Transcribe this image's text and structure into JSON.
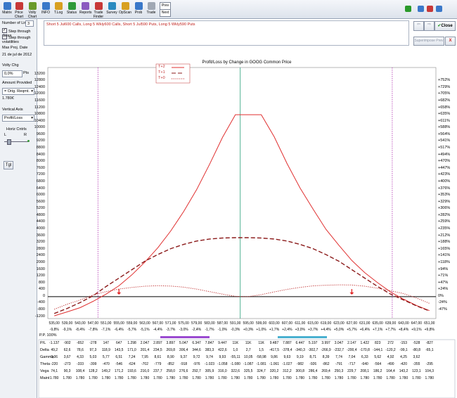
{
  "toolbar": {
    "buttons": [
      {
        "label": "Matrix",
        "icon": "matrix-icon",
        "color": "#3a78c9"
      },
      {
        "label": "Price Chart",
        "icon": "price-chart-icon",
        "color": "#c73838"
      },
      {
        "label": "Volty Chart",
        "icon": "volty-chart-icon",
        "color": "#6a9a2a"
      },
      {
        "label": "INFO",
        "icon": "info-icon",
        "color": "#3a78c9"
      },
      {
        "label": "T.Log",
        "icon": "tlog-icon",
        "color": "#d8a020"
      },
      {
        "label": "Status",
        "icon": "status-icon",
        "color": "#2e9a3a"
      },
      {
        "label": "Reports",
        "icon": "reports-icon",
        "color": "#8a5ac0"
      },
      {
        "label": "Trade Finder",
        "icon": "trade-finder-icon",
        "color": "#c73838"
      },
      {
        "label": "Survey",
        "icon": "survey-icon",
        "color": "#2a8ac0"
      },
      {
        "label": "OpScan",
        "icon": "opscan-icon",
        "color": "#d8a020"
      },
      {
        "label": "Prob",
        "icon": "prob-icon",
        "color": "#3a78c9"
      },
      {
        "label": "Trade",
        "icon": "trade-icon",
        "color": "#a0a8b4"
      }
    ],
    "prev_label": "Prev",
    "next_label": "Next"
  },
  "panel": {
    "lines_label": "Number of Lines",
    "lines_value": "3",
    "step_dates": "Step through dates",
    "step_vol": "Step through volatilities",
    "max_proj_label": "Max Proj. Date",
    "max_proj_value": "21 de jul de 2012",
    "volty_label": "Volty Chg",
    "volty_value": "0,0%",
    "volty_unit": "Pts",
    "amount_label": "Amount Provided",
    "amount_select": "= Orig. Reqmt.",
    "amount_value": "1.780€",
    "vaxis_label": "Vertical Axis",
    "vaxis_value": "Profit/Loss",
    "horiz_label": "Horiz Cntrls",
    "l_label": "L",
    "r_label": "R",
    "tgl_label": "Tgl"
  },
  "description": "Short 5 Jul600 Calls, Long 5 Wkly600 Calls, Short 5 Jul590 Puts, Long 5 Wkly590 Puts",
  "right_controls": {
    "close_label": "Close",
    "superimpose_label": "Superimpose Prev",
    "close_x": "X"
  },
  "chart_data": {
    "type": "line",
    "title": "Profit/Loss by Change in GOOG Common Price",
    "legend": [
      "T+2",
      "T+1",
      "T+0"
    ],
    "legend_placement": "top-left",
    "y_ticks": [
      -1200,
      -800,
      -400,
      0,
      400,
      800,
      1200,
      1600,
      2000,
      2400,
      2800,
      3200,
      3600,
      4000,
      4400,
      4800,
      5200,
      5600,
      6000,
      6400,
      6800,
      7200,
      7600,
      8000,
      8400,
      8800,
      9200,
      9600,
      10000,
      10400,
      10800,
      11200,
      11600,
      12000,
      12400,
      12800,
      13200
    ],
    "ylim": [
      -1300,
      13600
    ],
    "right_ticks": [
      "-47%",
      "-24%",
      "0%",
      "+24%",
      "+47%",
      "+71%",
      "+94%",
      "+118%",
      "+141%",
      "+165%",
      "+188%",
      "+212%",
      "+235%",
      "+259%",
      "+282%",
      "+306%",
      "+329%",
      "+353%",
      "+376%",
      "+400%",
      "+423%",
      "+447%",
      "+470%",
      "+494%",
      "+517%",
      "+541%",
      "+564%",
      "+588%",
      "+611%",
      "+635%",
      "+658%",
      "+682%",
      "+705%",
      "+729%",
      "+752%"
    ],
    "right_tick_values": [
      -800,
      -400,
      0,
      400,
      800,
      1200,
      1600,
      2000,
      2400,
      2800,
      3200,
      3600,
      4000,
      4400,
      4800,
      5200,
      5600,
      6000,
      6400,
      6800,
      7200,
      7600,
      8000,
      8400,
      8800,
      9200,
      9600,
      10000,
      10400,
      10800,
      11200,
      11600,
      12000,
      12400,
      12800
    ],
    "x": [
      535,
      539,
      543,
      547,
      551,
      555,
      559,
      563,
      567,
      571,
      575,
      579,
      583,
      587,
      591,
      595,
      599,
      603,
      607,
      611,
      615,
      619,
      623,
      627,
      631,
      635,
      639,
      643,
      647,
      651
    ],
    "x_labels": [
      "535,00",
      "539,00",
      "543,00",
      "547,00",
      "551,00",
      "555,00",
      "559,00",
      "563,00",
      "567,00",
      "571,00",
      "575,00",
      "579,00",
      "583,00",
      "587,00",
      "591,00",
      "595,00",
      "599,00",
      "603,00",
      "607,00",
      "611,00",
      "615,00",
      "619,00",
      "623,00",
      "627,00",
      "631,00",
      "635,00",
      "639,00",
      "643,00",
      "647,00",
      "651,00"
    ],
    "x_pct": [
      "-9,8%",
      "-9,1%",
      "-8,4%",
      "-7,8%",
      "-7,1%",
      "-6,4%",
      "-5,7%",
      "-5,1%",
      "-4,4%",
      "-3,7%",
      "-3,0%",
      "-2,4%",
      "-1,7%",
      "-1,0%",
      "-0,3%",
      "+0,3%",
      "+1,0%",
      "+1,7%",
      "+2,4%",
      "+3,0%",
      "+3,7%",
      "+4,4%",
      "+5,0%",
      "+5,7%",
      "+6,4%",
      "+7,1%",
      "+7,7%",
      "+8,4%",
      "+9,1%",
      "+9,8%"
    ],
    "xlim": [
      533,
      653
    ],
    "series": [
      {
        "name": "T+2",
        "style": "solid",
        "values": [
          -1137,
          -902,
          -652,
          -278,
          147,
          647,
          1298,
          2047,
          2897,
          3897,
          5047,
          6347,
          7847,
          9447,
          10800,
          10800,
          10800,
          9487,
          7887,
          6447,
          5197,
          3997,
          3047,
          2147,
          1422,
          823,
          272,
          -153,
          -528,
          -827
        ]
      },
      {
        "name": "T+1",
        "style": "dashed",
        "values": [
          -1000,
          -700,
          -350,
          50,
          600,
          1100,
          1600,
          2100,
          2500,
          2850,
          3100,
          3300,
          3420,
          3480,
          3500,
          3500,
          3480,
          3420,
          3300,
          3100,
          2850,
          2500,
          2100,
          1600,
          1100,
          600,
          150,
          -200,
          -550,
          -850
        ]
      },
      {
        "name": "T+0",
        "style": "dotted",
        "values": [
          -750,
          -450,
          -200,
          100,
          300,
          450,
          550,
          620,
          650,
          630,
          560,
          450,
          300,
          150,
          20,
          0,
          120,
          280,
          430,
          550,
          640,
          680,
          700,
          690,
          620,
          500,
          350,
          180,
          -80,
          -400
        ]
      }
    ],
    "current_price": 592.5,
    "breakevens": [
      548.5,
      639.5
    ],
    "markers": [
      555,
      627
    ],
    "rows": [
      {
        "label": "P/L",
        "values": [
          "-1.137",
          "-902",
          "-652",
          "-278",
          "147",
          "647",
          "1.298",
          "2.047",
          "2.897",
          "3.897",
          "5.047",
          "6.347",
          "7.847",
          "9.447",
          "11K",
          "11K",
          "11K",
          "9.487",
          "7.887",
          "6.447",
          "5.197",
          "3.997",
          "3.047",
          "2.147",
          "1.422",
          "823",
          "272",
          "-153",
          "-528",
          "-827"
        ]
      },
      {
        "label": "Delta",
        "values": [
          "49,2",
          "62,6",
          "78,6",
          "97,3",
          "118,9",
          "143,5",
          "171,0",
          "201,4",
          "234,5",
          "269,8",
          "306,4",
          "344,6",
          "383,3",
          "422,6",
          "1,0",
          "2,7",
          "1,5",
          "-417,5",
          "-378,4",
          "-340,3",
          "-302,7",
          "-266,9",
          "-232,7",
          "-200,4",
          "-170,8",
          "-144,1",
          "-120,2",
          "-99,1",
          "-80,8",
          "-65,1"
        ]
      },
      {
        "label": "Gamma",
        "values": [
          "3,06",
          "3,67",
          "4,33",
          "5,03",
          "5,77",
          "6,51",
          "7,24",
          "7,95",
          "8,61",
          "8,90",
          "9,37",
          "9,72",
          "9,74",
          "9,93",
          "-55,11",
          "10,05",
          "-58,98",
          "9,86",
          "9,63",
          "9,19",
          "8,71",
          "8,39",
          "7,74",
          "7,04",
          "6,33",
          "5,62",
          "4,92",
          "4,25",
          "3,62",
          ""
        ]
      },
      {
        "label": "Theta",
        "values": [
          "-220",
          "-273",
          "-333",
          "-399",
          "-470",
          "-546",
          "-624",
          "-702",
          "-779",
          "-852",
          "-918",
          "-976",
          "-1.023",
          "-1.058",
          "-1.080",
          "-1.087",
          "-1.081",
          "-1.061",
          "-1.027",
          "-982",
          "-926",
          "-862",
          "-791",
          "-717",
          "-640",
          "-564",
          "-490",
          "-420",
          "-355",
          "-295"
        ]
      },
      {
        "label": "Vega",
        "values": [
          "74,1",
          "90,3",
          "108,4",
          "128,2",
          "149,2",
          "171,2",
          "193,6",
          "216,0",
          "237,7",
          "258,0",
          "276,6",
          "292,7",
          "305,9",
          "316,0",
          "322,6",
          "325,5",
          "324,7",
          "320,2",
          "312,2",
          "300,8",
          "286,4",
          "269,4",
          "250,3",
          "229,7",
          "208,1",
          "186,2",
          "164,4",
          "143,2",
          "123,1",
          "104,3"
        ]
      },
      {
        "label": "Maint",
        "values": [
          "1.780",
          "1.780",
          "1.780",
          "1.780",
          "1.780",
          "1.780",
          "1.780",
          "1.780",
          "1.780",
          "1.780",
          "1.780",
          "1.780",
          "1.780",
          "1.780",
          "1.780",
          "1.780",
          "1.780",
          "1.780",
          "1.780",
          "1.780",
          "1.780",
          "1.780",
          "1.780",
          "1.780",
          "1.780",
          "1.780",
          "1.780",
          "1.780",
          "1.780",
          "1.780"
        ]
      }
    ],
    "pp_label": "P.P. 100%",
    "colors": {
      "line": "#e03030",
      "dashed": "#8b1a1a",
      "dotted": "#c03030",
      "current": "#2aa07a",
      "breakeven": "#b030b0",
      "marker": "#e02020"
    }
  }
}
